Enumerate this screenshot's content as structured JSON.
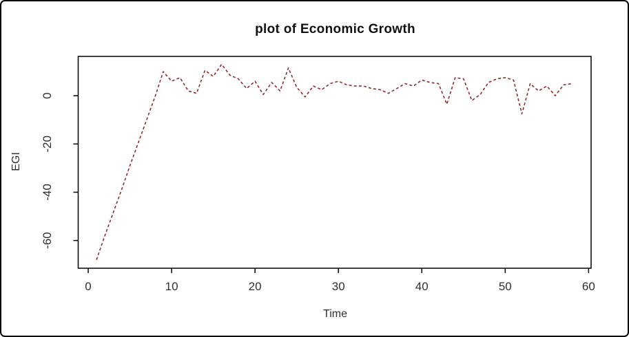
{
  "window": {
    "background_color": "#ffffff",
    "border_color": "#000000"
  },
  "chart_data": {
    "type": "line",
    "title": "plot of Economic Growth",
    "xlabel": "Time",
    "ylabel": "EGI",
    "series": [
      {
        "name": "EGI",
        "x": [
          1,
          2,
          3,
          4,
          5,
          6,
          7,
          8,
          9,
          10,
          11,
          12,
          13,
          14,
          15,
          16,
          17,
          18,
          19,
          20,
          21,
          22,
          23,
          24,
          25,
          26,
          27,
          28,
          29,
          30,
          31,
          32,
          33,
          34,
          35,
          36,
          37,
          38,
          39,
          40,
          41,
          42,
          43,
          44,
          45,
          46,
          47,
          48,
          49,
          50,
          51,
          52,
          53,
          54,
          55,
          56,
          57,
          58
        ],
        "values": [
          -68,
          -58,
          -48.5,
          -39,
          -29,
          -19.5,
          -10,
          -0.5,
          10,
          6,
          7.5,
          2,
          1,
          10.5,
          8,
          13,
          8.5,
          7,
          3,
          6,
          0.5,
          5.5,
          2,
          11.5,
          3.5,
          -0.5,
          4,
          2.5,
          5,
          6,
          4.5,
          4,
          4,
          3,
          2.5,
          1,
          3,
          5,
          4,
          6.5,
          5.5,
          5,
          -3.5,
          7.5,
          7,
          -2,
          0.5,
          5.5,
          7,
          7.5,
          6.5,
          -7.5,
          5,
          2,
          4,
          0,
          4.5,
          5
        ]
      }
    ],
    "line_style": {
      "color": "#8e2b2b",
      "dash": "dashed",
      "width": 1.6
    },
    "xticks": [
      0,
      10,
      20,
      30,
      40,
      50,
      60
    ],
    "yticks": [
      0,
      -20,
      -40,
      -60
    ],
    "xlim": [
      -1.2,
      60.3
    ],
    "ylim": [
      -71.5,
      16.3
    ],
    "grid": false,
    "legend": "none",
    "axis_color": "#000000",
    "tick_label_color": "#2e2e2e"
  }
}
